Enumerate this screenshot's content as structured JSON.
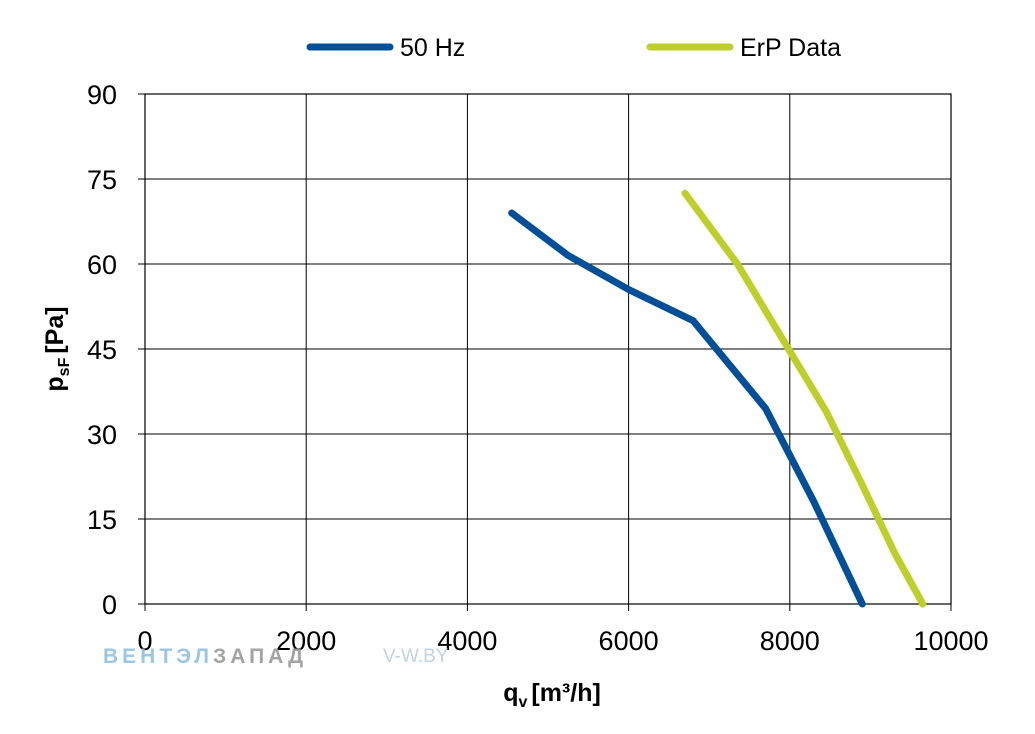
{
  "chart_data": {
    "type": "line",
    "xlabel_main": "q",
    "xlabel_sub": "v",
    "xlabel_unit": "[m³/h]",
    "ylabel_main": "p",
    "ylabel_sub": "sF",
    "ylabel_unit": "[Pa]",
    "xlim": [
      0,
      10000
    ],
    "ylim": [
      0,
      90
    ],
    "x_ticks": [
      "0",
      "2000",
      "4000",
      "6000",
      "8000",
      "10000"
    ],
    "y_ticks": [
      "0",
      "15",
      "30",
      "45",
      "60",
      "75",
      "90"
    ],
    "grid": true,
    "legend_position": "top",
    "series": [
      {
        "name": "50 Hz",
        "color": "#004f98",
        "points": [
          [
            4550,
            69
          ],
          [
            5250,
            61.5
          ],
          [
            6000,
            55.5
          ],
          [
            6800,
            50
          ],
          [
            7700,
            34.5
          ],
          [
            8300,
            18
          ],
          [
            8900,
            0
          ]
        ]
      },
      {
        "name": "ErP Data",
        "color": "#bfcf29",
        "points": [
          [
            6700,
            72.5
          ],
          [
            7350,
            60
          ],
          [
            7900,
            47
          ],
          [
            8450,
            34
          ],
          [
            8900,
            21
          ],
          [
            9300,
            9
          ],
          [
            9650,
            0
          ]
        ]
      }
    ]
  },
  "watermark": {
    "brand_blue": "ВЕНТЭЛ",
    "brand_gray": "ЗАПАД",
    "url": "V-W.BY"
  }
}
